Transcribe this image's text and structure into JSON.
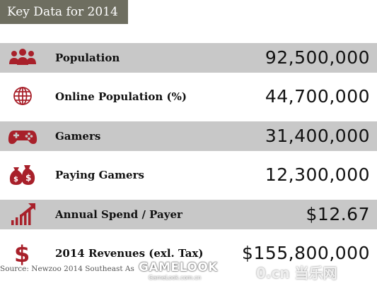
{
  "header": {
    "title": "Key Data for 2014"
  },
  "colors": {
    "header_bg": "#6e6e60",
    "row_shade": "#c8c8c8",
    "icon_red": "#a8202a"
  },
  "chart_data": {
    "type": "table",
    "title": "Key Data for 2014",
    "rows": [
      {
        "label": "Population",
        "value": "92,500,000",
        "icon": "people-icon"
      },
      {
        "label": "Online Population (%)",
        "value": "44,700,000",
        "icon": "globe-icon"
      },
      {
        "label": "Gamers",
        "value": "31,400,000",
        "icon": "gamepad-icon"
      },
      {
        "label": "Paying Gamers",
        "value": "12,300,000",
        "icon": "money-bags-icon"
      },
      {
        "label": "Annual Spend / Payer",
        "value": "$12.67",
        "icon": "growth-chart-icon"
      },
      {
        "label": "2014 Revenues (exl. Tax)",
        "value": "$155,800,000",
        "icon": "dollar-icon"
      }
    ]
  },
  "footer": {
    "source": "Source: Newzoo 2014 Southeast As"
  },
  "watermark": {
    "logo": "GAMELOOK",
    "sub": "GameLook.com.cn",
    "site": "0.cn 当乐网"
  }
}
